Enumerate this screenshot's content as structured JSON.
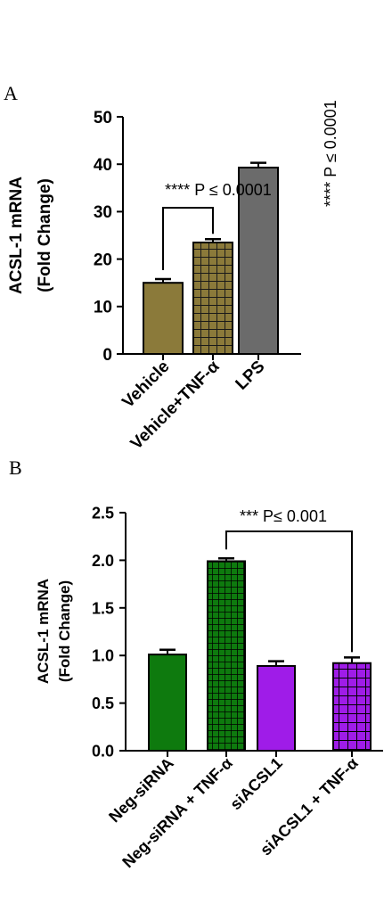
{
  "chart_data": [
    {
      "panel": "A",
      "type": "bar",
      "ylabel": [
        "ACSL-1 mRNA",
        "(Fold  Change)"
      ],
      "ylim": [
        0,
        50
      ],
      "yticks": [
        "0",
        "10",
        "20",
        "30",
        "40",
        "50"
      ],
      "categories": [
        "Vehicle",
        "Vehicle+TNF-α",
        "LPS"
      ],
      "values": [
        15.0,
        23.5,
        39.3
      ],
      "errors": [
        0.8,
        0.7,
        1.0
      ],
      "colors": [
        "#8b7a3a",
        "#8b7a3a",
        "#6b6b6b"
      ],
      "patterns": [
        "solid",
        "grid",
        "solid"
      ],
      "annotations": [
        {
          "text": "**** P ≤ 0.0001",
          "from": 0,
          "to": 1
        },
        {
          "text": "**** P ≤ 0.0001",
          "bar": 2,
          "rotated": true
        }
      ]
    },
    {
      "panel": "B",
      "type": "bar",
      "ylabel": [
        "ACSL-1 mRNA",
        "(Fold  Change)"
      ],
      "ylim": [
        0,
        2.5
      ],
      "yticks": [
        "0.0",
        "0.5",
        "1.0",
        "1.5",
        "2.0",
        "2.5"
      ],
      "categories": [
        "Neg-siRNA",
        "Neg-siRNA + TNF-α",
        "siACSL1",
        "siACSL1 + TNF-α"
      ],
      "values": [
        1.01,
        1.99,
        0.89,
        0.92
      ],
      "errors": [
        0.05,
        0.03,
        0.05,
        0.06
      ],
      "colors": [
        "#0e7a0e",
        "#0e7a0e",
        "#9f1ce8",
        "#9f1ce8"
      ],
      "patterns": [
        "solid",
        "grid",
        "solid",
        "grid"
      ],
      "annotations": [
        {
          "text": "*** P≤ 0.001",
          "from": 1,
          "to": 3
        }
      ]
    }
  ]
}
